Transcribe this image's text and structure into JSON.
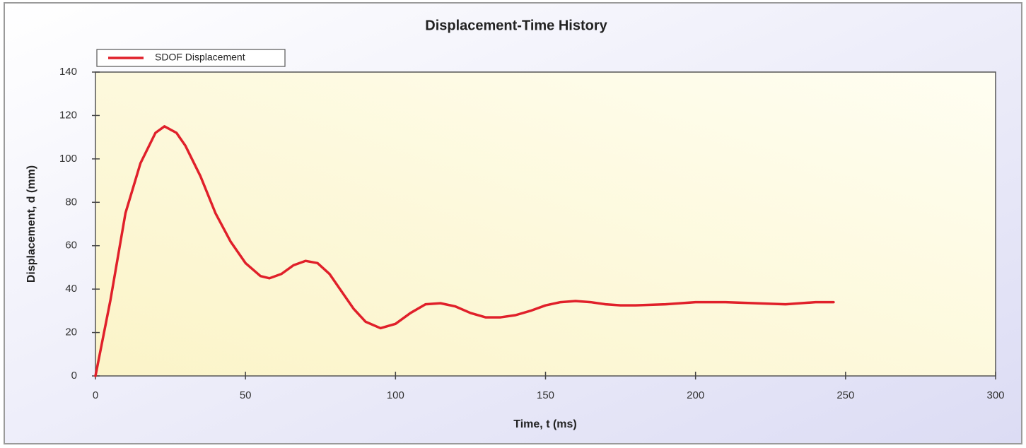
{
  "chart_data": {
    "type": "line",
    "title": "Displacement-Time History",
    "x_label": "Time, t (ms)",
    "y_label": "Displacement, d (mm)",
    "legend": "top-left",
    "grid": false,
    "xlim": [
      0,
      300
    ],
    "ylim": [
      0,
      140
    ],
    "xticks": [
      0,
      50,
      100,
      150,
      200,
      250,
      300
    ],
    "yticks": [
      0,
      20,
      40,
      60,
      80,
      100,
      120,
      140
    ],
    "x": [
      0,
      5,
      10,
      15,
      20,
      23,
      27,
      30,
      35,
      40,
      45,
      50,
      55,
      58,
      62,
      66,
      70,
      74,
      78,
      82,
      86,
      90,
      95,
      100,
      105,
      110,
      115,
      120,
      125,
      130,
      135,
      140,
      145,
      150,
      155,
      160,
      165,
      170,
      175,
      180,
      190,
      200,
      210,
      220,
      230,
      240,
      246
    ],
    "series": [
      {
        "name": "SDOF Displacement",
        "color": "#e0202a",
        "values": [
          0,
          35,
          75,
          98,
          112,
          115,
          112,
          106,
          92,
          75,
          62,
          52,
          46,
          45,
          47,
          51,
          53,
          52,
          47,
          39,
          31,
          25,
          22,
          24,
          29,
          33,
          33.5,
          32,
          29,
          27,
          27,
          28,
          30,
          32.5,
          34,
          34.5,
          34,
          33,
          32.5,
          32.5,
          33,
          34,
          34,
          33.5,
          33,
          34,
          34
        ]
      }
    ]
  }
}
